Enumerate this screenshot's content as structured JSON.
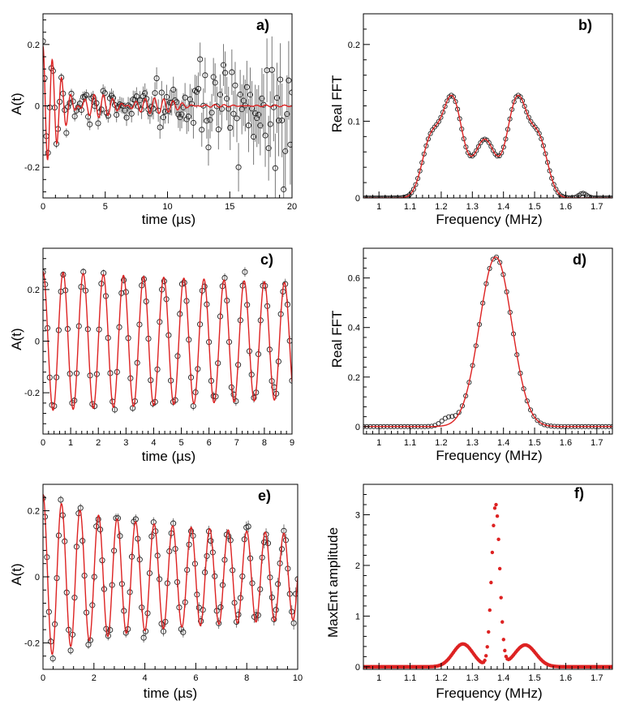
{
  "colors": {
    "fit": "#dd2222",
    "data": "#222222",
    "errorbar": "#777777",
    "axis": "#000000",
    "background": "#ffffff"
  },
  "chart_data": [
    {
      "id": "a",
      "panel_label": "a)",
      "type": "line",
      "xlabel": "time (µs)",
      "ylabel": "A(t)",
      "xlim": [
        0,
        20
      ],
      "ylim": [
        -0.3,
        0.3
      ],
      "xticks": [
        0,
        5,
        10,
        15,
        20
      ],
      "xtick_labels": [
        "0",
        "5",
        "10",
        "15",
        "20"
      ],
      "yticks": [
        -0.2,
        0,
        0.2
      ],
      "ytick_labels": [
        "-0.2",
        "0",
        "0.2"
      ],
      "series": [
        {
          "name": "data",
          "style": "open-circles-errorbars",
          "model": {
            "kind": "multi_cos",
            "amplitudes": [
              0.075,
              0.075,
              0.045
            ],
            "frequencies": [
              1.235,
              1.445,
              1.34
            ],
            "phases": [
              0,
              0,
              0
            ],
            "decay": 0.22,
            "t_start": 0,
            "t_end": 20,
            "n_points": 150,
            "noise_start": 0.012,
            "noise_growth": 0.12,
            "seed": 7
          }
        },
        {
          "name": "fit",
          "style": "line",
          "model": {
            "kind": "multi_cos",
            "amplitudes": [
              0.075,
              0.075,
              0.045
            ],
            "frequencies": [
              1.235,
              1.445,
              1.34
            ],
            "phases": [
              0,
              0,
              0
            ],
            "decay": 0.22,
            "t_start": 0,
            "t_end": 20,
            "n_points": 900
          }
        }
      ]
    },
    {
      "id": "b",
      "panel_label": "b)",
      "type": "line",
      "xlabel": "Frequency (MHz)",
      "ylabel": "Real FFT",
      "xlim": [
        0.95,
        1.75
      ],
      "ylim": [
        0,
        0.24
      ],
      "xticks": [
        1,
        1.1,
        1.2,
        1.3,
        1.4,
        1.5,
        1.6,
        1.7
      ],
      "xtick_labels": [
        "1",
        "1.1",
        "1.2",
        "1.3",
        "1.4",
        "1.5",
        "1.6",
        "1.7"
      ],
      "yticks": [
        0,
        0.1,
        0.2
      ],
      "ytick_labels": [
        "0",
        "0.1",
        "0.2"
      ],
      "series": [
        {
          "name": "data",
          "style": "open-circles",
          "model": {
            "kind": "peaks",
            "centers": [
              1.165,
              1.235,
              1.34,
              1.445,
              1.515
            ],
            "amplitudes": [
              0.07,
              0.13,
              0.075,
              0.13,
              0.07
            ],
            "widths": [
              0.028,
              0.033,
              0.033,
              0.033,
              0.028
            ],
            "x_start": 0.95,
            "x_end": 1.75,
            "n_points": 120,
            "bump_center": 1.655,
            "bump_amp": 0.006,
            "bump_width": 0.012
          }
        },
        {
          "name": "fit",
          "style": "line",
          "model": {
            "kind": "peaks",
            "centers": [
              1.165,
              1.235,
              1.34,
              1.445,
              1.515
            ],
            "amplitudes": [
              0.07,
              0.13,
              0.075,
              0.13,
              0.07
            ],
            "widths": [
              0.028,
              0.033,
              0.033,
              0.033,
              0.028
            ],
            "x_start": 0.95,
            "x_end": 1.75,
            "n_points": 400
          }
        }
      ]
    },
    {
      "id": "c",
      "panel_label": "c)",
      "type": "line",
      "xlabel": "time (µs)",
      "ylabel": "A(t)",
      "xlim": [
        0,
        9
      ],
      "ylim": [
        -0.36,
        0.36
      ],
      "xticks": [
        0,
        1,
        2,
        3,
        4,
        5,
        6,
        7,
        8,
        9
      ],
      "xtick_labels": [
        "0",
        "1",
        "2",
        "3",
        "4",
        "5",
        "6",
        "7",
        "8",
        "9"
      ],
      "yticks": [
        -0.2,
        0,
        0.2
      ],
      "ytick_labels": [
        "-0.2",
        "0",
        "0.2"
      ],
      "series": [
        {
          "name": "data",
          "style": "open-circles-errorbars",
          "model": {
            "kind": "multi_cos",
            "amplitudes": [
              0.27
            ],
            "frequencies": [
              1.375
            ],
            "phases": [
              0
            ],
            "decay": 0.02,
            "t_start": 0,
            "t_end": 9,
            "n_points": 112,
            "noise_start": 0.012,
            "noise_growth": 0.06,
            "seed": 11
          }
        },
        {
          "name": "fit",
          "style": "line",
          "model": {
            "kind": "multi_cos",
            "amplitudes": [
              0.27
            ],
            "frequencies": [
              1.375
            ],
            "phases": [
              0
            ],
            "decay": 0.02,
            "t_start": 0,
            "t_end": 9,
            "n_points": 900
          }
        }
      ]
    },
    {
      "id": "d",
      "panel_label": "d)",
      "type": "line",
      "xlabel": "Frequency (MHz)",
      "ylabel": "Real FFT",
      "xlim": [
        0.95,
        1.75
      ],
      "ylim": [
        -0.03,
        0.72
      ],
      "xticks": [
        1,
        1.1,
        1.2,
        1.3,
        1.4,
        1.5,
        1.6,
        1.7
      ],
      "xtick_labels": [
        "1",
        "1.1",
        "1.2",
        "1.3",
        "1.4",
        "1.5",
        "1.6",
        "1.7"
      ],
      "yticks": [
        0,
        0.2,
        0.4,
        0.6
      ],
      "ytick_labels": [
        "0",
        "0.2",
        "0.4",
        "0.6"
      ],
      "series": [
        {
          "name": "data",
          "style": "open-circles",
          "model": {
            "kind": "peaks",
            "centers": [
              1.375
            ],
            "amplitudes": [
              0.685
            ],
            "widths": [
              0.052
            ],
            "x_start": 0.95,
            "x_end": 1.75,
            "n_points": 74,
            "bump_center": 1.22,
            "bump_amp": 0.03,
            "bump_width": 0.02
          }
        },
        {
          "name": "fit",
          "style": "line",
          "model": {
            "kind": "peaks",
            "centers": [
              1.375
            ],
            "amplitudes": [
              0.685
            ],
            "widths": [
              0.052
            ],
            "x_start": 0.95,
            "x_end": 1.75,
            "n_points": 400
          }
        }
      ]
    },
    {
      "id": "e",
      "panel_label": "e)",
      "type": "line",
      "xlabel": "time (µs)",
      "ylabel": "A(t)",
      "xlim": [
        0,
        10
      ],
      "ylim": [
        -0.28,
        0.28
      ],
      "xticks": [
        0,
        2,
        4,
        6,
        8,
        10
      ],
      "xtick_labels": [
        "0",
        "2",
        "4",
        "6",
        "8",
        "10"
      ],
      "yticks": [
        -0.2,
        0,
        0.2
      ],
      "ytick_labels": [
        "-0.2",
        "0",
        "0.2"
      ],
      "series": [
        {
          "name": "data",
          "style": "open-circles-errorbars",
          "model": {
            "kind": "beat",
            "amplitudes": [
              0.175,
              0.075
            ],
            "frequencies": [
              1.375,
              1.375
            ],
            "phases": [
              0,
              0
            ],
            "decays": [
              0.03,
              0.55
            ],
            "t_start": 0,
            "t_end": 10,
            "n_points": 130,
            "noise_start": 0.012,
            "noise_growth": 0.05,
            "seed": 23
          }
        },
        {
          "name": "fit",
          "style": "line",
          "model": {
            "kind": "beat",
            "amplitudes": [
              0.175,
              0.075
            ],
            "frequencies": [
              1.375,
              1.375
            ],
            "phases": [
              0,
              0
            ],
            "decays": [
              0.03,
              0.55
            ],
            "t_start": 0,
            "t_end": 10,
            "n_points": 900
          }
        }
      ]
    },
    {
      "id": "f",
      "panel_label": "f)",
      "type": "scatter",
      "xlabel": "Frequency (MHz)",
      "ylabel": "MaxEnt amplitude",
      "xlim": [
        0.95,
        1.75
      ],
      "ylim": [
        -0.05,
        3.6
      ],
      "xticks": [
        1,
        1.1,
        1.2,
        1.3,
        1.4,
        1.5,
        1.6,
        1.7
      ],
      "xtick_labels": [
        "1",
        "1.1",
        "1.2",
        "1.3",
        "1.4",
        "1.5",
        "1.6",
        "1.7"
      ],
      "yticks": [
        0,
        1,
        2,
        3
      ],
      "ytick_labels": [
        "0",
        "1",
        "2",
        "3"
      ],
      "series": [
        {
          "name": "maxent",
          "style": "filled-dots",
          "model": {
            "kind": "peaks",
            "centers": [
              1.27,
              1.375,
              1.47
            ],
            "amplitudes": [
              0.45,
              3.2,
              0.43
            ],
            "widths": [
              0.032,
              0.013,
              0.034
            ],
            "x_start": 0.95,
            "x_end": 1.75,
            "n_points": 200
          }
        }
      ]
    }
  ]
}
